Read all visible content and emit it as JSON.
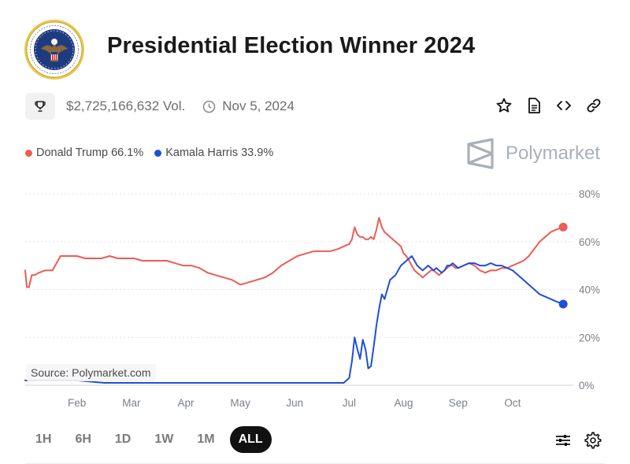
{
  "header": {
    "title": "Presidential Election Winner 2024",
    "volume": "$2,725,166,632 Vol.",
    "date": "Nov 5, 2024"
  },
  "icons": {
    "seal": "presidential-seal",
    "trophy": "trophy-icon",
    "clock": "clock-icon",
    "star": "star-icon",
    "document": "document-icon",
    "embed": "embed-code-icon",
    "link": "link-icon",
    "settings_sliders": "sliders-icon",
    "gear": "gear-icon"
  },
  "legend": [
    {
      "label": "Donald Trump 66.1%",
      "color": "#ee5b55"
    },
    {
      "label": "Kamala Harris 33.9%",
      "color": "#1e4fd8"
    }
  ],
  "brand": {
    "name": "Polymarket"
  },
  "source": "Source: Polymarket.com",
  "ranges": [
    "1H",
    "6H",
    "1D",
    "1W",
    "1M",
    "ALL"
  ],
  "active_range": "ALL",
  "chart_data": {
    "type": "line",
    "x_unit": "month index (Jan 2024 = 0)",
    "xlim": [
      0.05,
      10.0
    ],
    "ylim": [
      0,
      80
    ],
    "y_ticks": [
      "0%",
      "20%",
      "40%",
      "60%",
      "80%"
    ],
    "y_tick_values": [
      0,
      20,
      40,
      60,
      80
    ],
    "x_ticks": [
      "Feb",
      "Mar",
      "Apr",
      "May",
      "Jun",
      "Jul",
      "Aug",
      "Sep",
      "Oct"
    ],
    "x_tick_values": [
      1,
      2,
      3,
      4,
      5,
      6,
      7,
      8,
      9
    ],
    "grid": "horizontal-dashed",
    "y_axis_side": "right",
    "legend_position": "top-left",
    "series": [
      {
        "name": "Donald Trump",
        "color": "#ee5b55",
        "x": [
          0.05,
          0.08,
          0.12,
          0.17,
          0.22,
          0.3,
          0.42,
          0.55,
          0.7,
          0.85,
          1.0,
          1.15,
          1.3,
          1.45,
          1.6,
          1.75,
          1.9,
          2.05,
          2.2,
          2.35,
          2.5,
          2.65,
          2.8,
          2.95,
          3.1,
          3.25,
          3.4,
          3.55,
          3.7,
          3.85,
          4.0,
          4.15,
          4.3,
          4.45,
          4.6,
          4.75,
          4.9,
          5.05,
          5.2,
          5.35,
          5.5,
          5.65,
          5.8,
          5.9,
          6.0,
          6.05,
          6.1,
          6.15,
          6.2,
          6.25,
          6.3,
          6.35,
          6.4,
          6.45,
          6.5,
          6.55,
          6.6,
          6.65,
          6.7,
          6.75,
          6.8,
          6.85,
          6.9,
          6.95,
          7.0,
          7.05,
          7.1,
          7.15,
          7.2,
          7.25,
          7.3,
          7.35,
          7.4,
          7.45,
          7.5,
          7.55,
          7.6,
          7.65,
          7.7,
          7.75,
          7.8,
          7.85,
          7.9,
          7.95,
          8.0,
          8.1,
          8.2,
          8.3,
          8.4,
          8.5,
          8.6,
          8.7,
          8.8,
          8.9,
          9.0,
          9.1,
          9.2,
          9.3,
          9.4,
          9.5,
          9.6,
          9.7,
          9.8,
          9.93
        ],
        "values": [
          48,
          41,
          41,
          46,
          46,
          47,
          48,
          48,
          54,
          54,
          54,
          53,
          53,
          53,
          54,
          53,
          53,
          53,
          52,
          52,
          52,
          52,
          51,
          50,
          50,
          49,
          47,
          46,
          45,
          44,
          42,
          43,
          44,
          45,
          47,
          50,
          52,
          54,
          55,
          56,
          56,
          56,
          57,
          58,
          59,
          61,
          66,
          63,
          62,
          62,
          61,
          61,
          62,
          61,
          65,
          70,
          66,
          64,
          63,
          62,
          61,
          60,
          59,
          58,
          55,
          54,
          52,
          50,
          48,
          47,
          46,
          45,
          46,
          47,
          48,
          48,
          47,
          46,
          47,
          48,
          49,
          50,
          50,
          49,
          49,
          50,
          51,
          50,
          48,
          47,
          48,
          48,
          49,
          49,
          50,
          51,
          52,
          54,
          57,
          60,
          62,
          64,
          65,
          66.1
        ]
      },
      {
        "name": "Kamala Harris",
        "color": "#1e4fd8",
        "x": [
          0.05,
          0.3,
          0.6,
          1.0,
          1.5,
          2.0,
          2.5,
          3.0,
          3.5,
          4.0,
          4.5,
          5.0,
          5.5,
          5.8,
          5.9,
          5.95,
          6.0,
          6.05,
          6.1,
          6.15,
          6.2,
          6.25,
          6.3,
          6.35,
          6.4,
          6.45,
          6.5,
          6.55,
          6.6,
          6.65,
          6.7,
          6.75,
          6.8,
          6.85,
          6.9,
          6.95,
          7.0,
          7.05,
          7.1,
          7.15,
          7.2,
          7.25,
          7.3,
          7.35,
          7.4,
          7.45,
          7.5,
          7.55,
          7.6,
          7.65,
          7.7,
          7.75,
          7.8,
          7.85,
          7.9,
          7.95,
          8.0,
          8.1,
          8.2,
          8.3,
          8.4,
          8.5,
          8.6,
          8.7,
          8.8,
          8.9,
          9.0,
          9.1,
          9.2,
          9.3,
          9.4,
          9.5,
          9.6,
          9.7,
          9.8,
          9.93
        ],
        "values": [
          2,
          2,
          2,
          2,
          1,
          1,
          1,
          1,
          1,
          1,
          1,
          1,
          1,
          1,
          1,
          2,
          3,
          10,
          20,
          15,
          11,
          19,
          15,
          7,
          8,
          16,
          25,
          32,
          38,
          36,
          40,
          44,
          45,
          46,
          48,
          50,
          51,
          52,
          53,
          54,
          52,
          50,
          49,
          48,
          49,
          50,
          49,
          48,
          49,
          48,
          47,
          48,
          50,
          50,
          51,
          50,
          49,
          50,
          51,
          51,
          50,
          50,
          51,
          50,
          50,
          49,
          48,
          46,
          44,
          42,
          40,
          38,
          37,
          36,
          35,
          33.9
        ]
      }
    ]
  }
}
